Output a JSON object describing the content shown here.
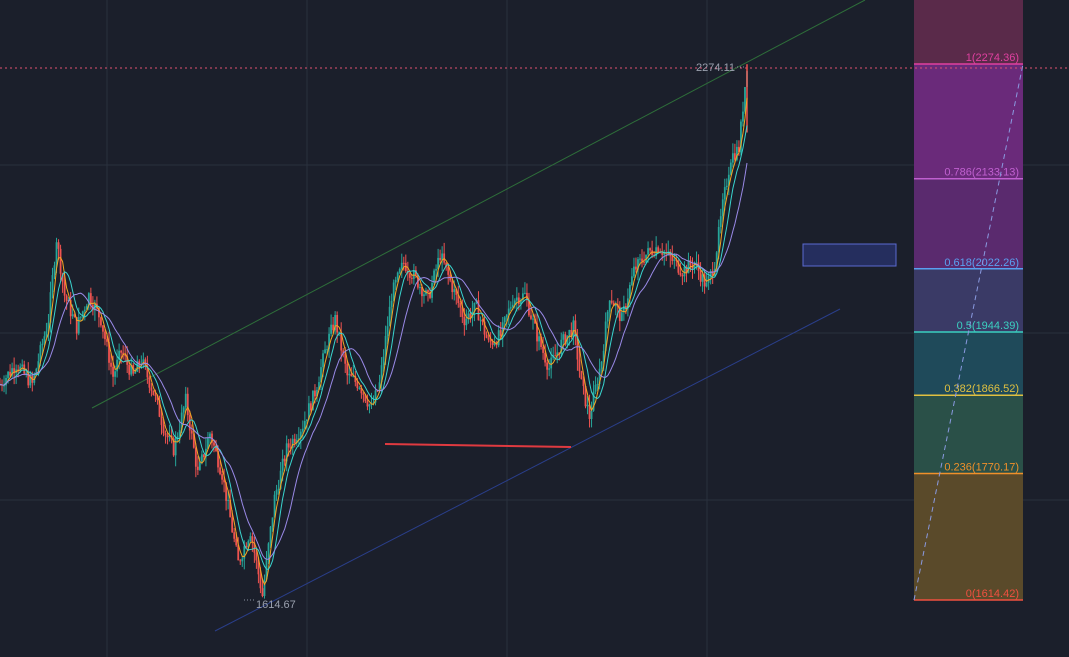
{
  "chart_data": {
    "type": "candlestick",
    "annotations": {
      "high_label": "2274.11",
      "low_label": "1614.67",
      "high_value": 2274.11,
      "low_value": 1614.67
    },
    "fibonacci": {
      "levels": [
        {
          "ratio": 1,
          "price": 2274.36,
          "label": "1(2274.36)",
          "color": "#e040a0",
          "fill": "#6a2a7a"
        },
        {
          "ratio": 0.786,
          "price": 2133.13,
          "label": "0.786(2133.13)",
          "color": "#c060d0",
          "fill": "#5a2a6e"
        },
        {
          "ratio": 0.618,
          "price": 2022.26,
          "label": "0.618(2022.26)",
          "color": "#5aa0f0",
          "fill": "#3a3a66"
        },
        {
          "ratio": 0.5,
          "price": 1944.39,
          "label": "0.5(1944.39)",
          "color": "#3ad0c0",
          "fill": "#1f4a5a"
        },
        {
          "ratio": 0.382,
          "price": 1866.52,
          "label": "0.382(1866.52)",
          "color": "#e0c040",
          "fill": "#2a5048"
        },
        {
          "ratio": 0.236,
          "price": 1770.17,
          "label": "0.236(1770.17)",
          "color": "#f0902a",
          "fill": "#5a4a2a"
        },
        {
          "ratio": 0,
          "price": 1614.42,
          "label": "0(1614.42)",
          "color": "#f05040",
          "fill": "#5a3a36"
        }
      ]
    },
    "price_path": [
      {
        "bar": 0,
        "price": 1880
      },
      {
        "bar": 8,
        "price": 1905
      },
      {
        "bar": 16,
        "price": 1880
      },
      {
        "bar": 24,
        "price": 1960
      },
      {
        "bar": 28,
        "price": 2060
      },
      {
        "bar": 32,
        "price": 1990
      },
      {
        "bar": 38,
        "price": 1950
      },
      {
        "bar": 44,
        "price": 1990
      },
      {
        "bar": 50,
        "price": 1960
      },
      {
        "bar": 56,
        "price": 1890
      },
      {
        "bar": 60,
        "price": 1920
      },
      {
        "bar": 66,
        "price": 1890
      },
      {
        "bar": 70,
        "price": 1910
      },
      {
        "bar": 76,
        "price": 1870
      },
      {
        "bar": 82,
        "price": 1820
      },
      {
        "bar": 86,
        "price": 1800
      },
      {
        "bar": 92,
        "price": 1860
      },
      {
        "bar": 98,
        "price": 1770
      },
      {
        "bar": 104,
        "price": 1820
      },
      {
        "bar": 110,
        "price": 1770
      },
      {
        "bar": 118,
        "price": 1660
      },
      {
        "bar": 124,
        "price": 1700
      },
      {
        "bar": 130,
        "price": 1620
      },
      {
        "bar": 136,
        "price": 1740
      },
      {
        "bar": 142,
        "price": 1800
      },
      {
        "bar": 150,
        "price": 1830
      },
      {
        "bar": 156,
        "price": 1870
      },
      {
        "bar": 162,
        "price": 1930
      },
      {
        "bar": 166,
        "price": 1960
      },
      {
        "bar": 172,
        "price": 1890
      },
      {
        "bar": 178,
        "price": 1880
      },
      {
        "bar": 184,
        "price": 1850
      },
      {
        "bar": 188,
        "price": 1880
      },
      {
        "bar": 194,
        "price": 1990
      },
      {
        "bar": 200,
        "price": 2030
      },
      {
        "bar": 206,
        "price": 2010
      },
      {
        "bar": 212,
        "price": 1985
      },
      {
        "bar": 218,
        "price": 2040
      },
      {
        "bar": 224,
        "price": 2000
      },
      {
        "bar": 230,
        "price": 1960
      },
      {
        "bar": 236,
        "price": 1975
      },
      {
        "bar": 242,
        "price": 1930
      },
      {
        "bar": 248,
        "price": 1940
      },
      {
        "bar": 254,
        "price": 1985
      },
      {
        "bar": 260,
        "price": 1990
      },
      {
        "bar": 266,
        "price": 1940
      },
      {
        "bar": 272,
        "price": 1900
      },
      {
        "bar": 278,
        "price": 1930
      },
      {
        "bar": 284,
        "price": 1950
      },
      {
        "bar": 288,
        "price": 1880
      },
      {
        "bar": 292,
        "price": 1840
      },
      {
        "bar": 298,
        "price": 1910
      },
      {
        "bar": 302,
        "price": 1990
      },
      {
        "bar": 308,
        "price": 1960
      },
      {
        "bar": 314,
        "price": 2020
      },
      {
        "bar": 320,
        "price": 2040
      },
      {
        "bar": 326,
        "price": 2050
      },
      {
        "bar": 332,
        "price": 2035
      },
      {
        "bar": 338,
        "price": 2020
      },
      {
        "bar": 344,
        "price": 2030
      },
      {
        "bar": 350,
        "price": 2000
      },
      {
        "bar": 354,
        "price": 2030
      },
      {
        "bar": 358,
        "price": 2100
      },
      {
        "bar": 362,
        "price": 2160
      },
      {
        "bar": 366,
        "price": 2170
      },
      {
        "bar": 370,
        "price": 2274
      }
    ]
  }
}
